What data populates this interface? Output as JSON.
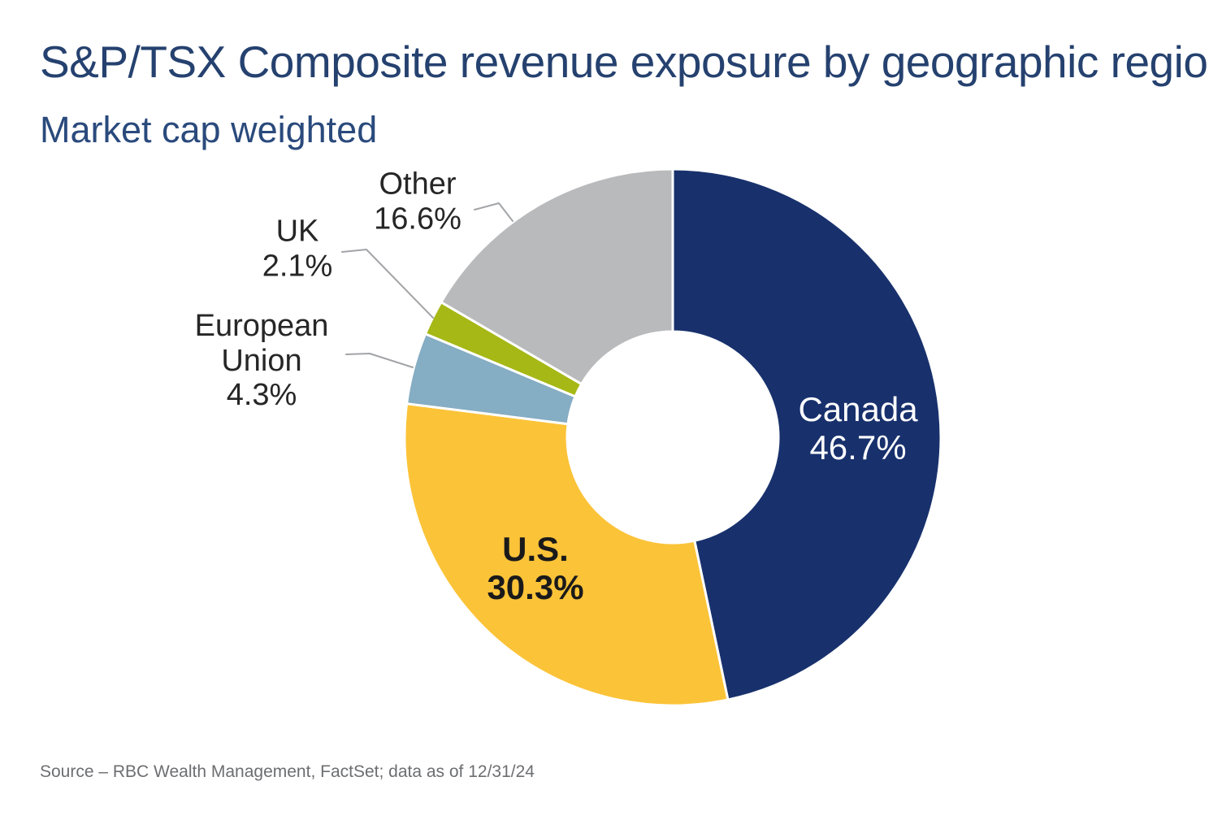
{
  "page": {
    "title": "S&P/TSX Composite revenue exposure by geographic region",
    "subtitle": "Market cap weighted",
    "source": "Source – RBC Wealth Management, FactSet; data as of 12/31/24"
  },
  "colors": {
    "title_text": "#25416F",
    "subtitle_text": "#2A4A7C",
    "source_text": "#6D6E71",
    "leader_line": "#A2A4A7",
    "slice_divider": "#FFFFFF",
    "background": "#FFFFFF"
  },
  "chart_data": {
    "type": "pie",
    "subtype": "donut",
    "title": "S&P/TSX Composite revenue exposure by geographic region",
    "subtitle": "Market cap weighted",
    "units": "%",
    "start_angle_deg": 0,
    "direction": "clockwise",
    "inner_radius_ratio": 0.394,
    "legend": "none",
    "grid": false,
    "segments": [
      {
        "label": "Canada",
        "value": 46.7,
        "display": "46.7%",
        "color": "#18316D",
        "label_placement": "inside",
        "label_color": "#FFFFFF"
      },
      {
        "label": "U.S.",
        "value": 30.3,
        "display": "30.3%",
        "color": "#FBC338",
        "label_placement": "inside",
        "label_color": "#1A1A1A"
      },
      {
        "label": "European Union",
        "value": 4.3,
        "display": "4.3%",
        "color": "#85ADC3",
        "label_placement": "outside",
        "label_color": "#262626"
      },
      {
        "label": "UK",
        "value": 2.1,
        "display": "2.1%",
        "color": "#A5B816",
        "label_placement": "outside",
        "label_color": "#262626"
      },
      {
        "label": "Other",
        "value": 16.6,
        "display": "16.6%",
        "color": "#B9BABC",
        "label_placement": "outside",
        "label_color": "#262626"
      }
    ],
    "source": "Source – RBC Wealth Management, FactSet; data as of 12/31/24"
  }
}
